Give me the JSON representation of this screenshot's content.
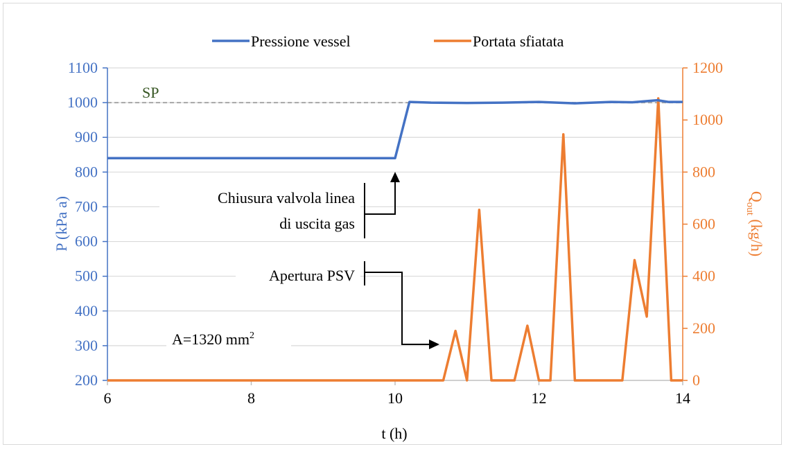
{
  "chart_data": {
    "type": "line",
    "title": "",
    "xlabel": "t (h)",
    "ylabel_left": "P (kPa a)",
    "ylabel_right": {
      "main": "Q",
      "sub": "out",
      "rest": " (kg/h)"
    },
    "xlim": [
      6,
      14
    ],
    "x_ticks": [
      "6",
      "8",
      "10",
      "12",
      "14"
    ],
    "ylim_left": [
      200,
      1100
    ],
    "y_ticks_left": [
      "200",
      "300",
      "400",
      "500",
      "600",
      "700",
      "800",
      "900",
      "1000",
      "1100"
    ],
    "ylim_right": [
      0,
      1200
    ],
    "y_ticks_right": [
      "0",
      "200",
      "400",
      "600",
      "800",
      "1000",
      "1200"
    ],
    "grid": "horizontal",
    "legend_position": "top",
    "colors": {
      "pressure": "#4472c4",
      "flow": "#ed7d31",
      "setpoint": "#a6a6a6",
      "sp_text": "#375623"
    },
    "series": [
      {
        "name": "Pressione vessel",
        "axis": "left",
        "x": [
          6,
          10,
          10.2,
          10.5,
          11,
          11.5,
          12,
          12.5,
          13,
          13.3,
          13.65,
          13.8,
          14
        ],
        "y": [
          840,
          840,
          1002,
          1000,
          999,
          1000,
          1002,
          998,
          1002,
          1001,
          1007,
          1002,
          1002
        ]
      },
      {
        "name": "Portata sfiatata",
        "axis": "right",
        "x": [
          6,
          10.67,
          10.84,
          11.0,
          11.17,
          11.34,
          11.66,
          11.84,
          12.0,
          12.16,
          12.34,
          12.5,
          13.16,
          13.33,
          13.5,
          13.66,
          13.84,
          14
        ],
        "y": [
          0,
          0,
          190,
          0,
          655,
          0,
          0,
          210,
          0,
          0,
          945,
          0,
          0,
          462,
          245,
          1083,
          0,
          0
        ]
      }
    ],
    "setpoint": {
      "label": "SP",
      "value": 1000
    },
    "annotations": [
      {
        "id": "closing-valve",
        "line1": "Chiusura valvola linea",
        "line2": "di uscita gas"
      },
      {
        "id": "psv-opening",
        "text": "Apertura PSV"
      },
      {
        "id": "area",
        "text": "A=1320 mm",
        "sup": "2"
      }
    ]
  }
}
